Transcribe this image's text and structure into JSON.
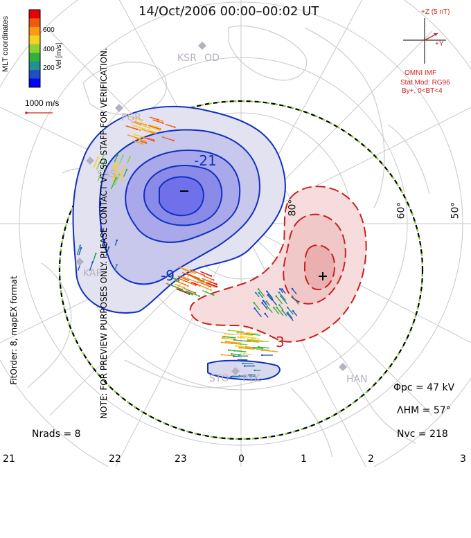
{
  "title": "14/Oct/2006  00:00–00:02  UT",
  "side_note": "NOTE: FOR PREVIEW PURPOSES ONLY. PLEASE CONTACT VT-SD STAFF FOR VERIFICATION.",
  "side_fit": "FitOrder: 8,  mapEX format",
  "legend": {
    "title": "MLT coordinates",
    "unit": "Vel [m/s]",
    "ticks": [
      "600",
      "400",
      "200"
    ],
    "colors": [
      "#e8000a",
      "#f05a10",
      "#f89a18",
      "#f8d020",
      "#90d030",
      "#30b040",
      "#209090",
      "#2050c0",
      "#0000ff"
    ]
  },
  "speed_ref": "1000 m/s",
  "imf": {
    "bz_label": "+Z (5 nT)",
    "by_label": "+Y",
    "source": "OMNI IMF",
    "model": "Stat Mod: RG96",
    "condition": "By+,  0<BT<4"
  },
  "stats": {
    "phi_pc": "Φpc  =  47 kV",
    "lambda_hm": "ΛHM  =  57°",
    "n_vc": "Nvc  =  218",
    "n_rads": "Nrads  =  8"
  },
  "mlt_labels": [
    "21",
    "22",
    "23",
    "0",
    "1",
    "2",
    "3"
  ],
  "lat_labels": [
    "80°",
    "60°",
    "50°"
  ],
  "stations": [
    "KSR",
    "OD",
    "PGR",
    "SAS",
    "KAP",
    "STO",
    "PYK",
    "HAN"
  ],
  "contour_labels": [
    "-21",
    "-9",
    "3"
  ],
  "extrema": {
    "min_symbol": "–",
    "max_symbol": "+"
  },
  "colors": {
    "negative": "#1030c0",
    "positive": "#c82020",
    "boundary": "#000000"
  }
}
